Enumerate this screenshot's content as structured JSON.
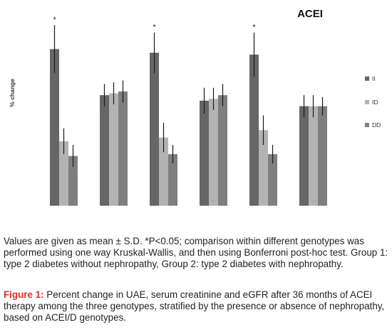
{
  "chart_data": {
    "type": "bar",
    "title": "ACEI",
    "ylabel": "% change",
    "xlabel": "",
    "categories": [
      "",
      "",
      "",
      "",
      "",
      ""
    ],
    "ylim": [
      0,
      100
    ],
    "legend_position": "right",
    "series": [
      {
        "name": "II",
        "color": "#666666",
        "values": [
          85,
          60,
          83,
          57,
          82,
          54
        ],
        "errors": [
          13,
          6,
          11,
          7,
          12,
          6
        ]
      },
      {
        "name": "ID",
        "color": "#b3b3b3",
        "values": [
          35,
          61,
          37,
          58,
          41,
          54
        ],
        "errors": [
          7,
          6,
          8,
          6,
          8,
          6
        ]
      },
      {
        "name": "DD",
        "color": "#7f7f7f",
        "values": [
          27,
          62,
          28,
          60,
          28,
          54
        ],
        "errors": [
          6,
          6,
          5,
          6,
          5,
          5
        ]
      }
    ],
    "annotations": [
      {
        "text": "*",
        "category_index": 0
      },
      {
        "text": "*",
        "category_index": 2
      },
      {
        "text": "*",
        "category_index": 4
      }
    ]
  },
  "caption": {
    "note": "Values are given as mean ± S.D. *P<0.05; comparison within different genotypes was performed using one way Kruskal-Wallis, and then using Bonferroni post-hoc test. Group 1: type 2 diabetes without nephropathy, Group 2: type 2 diabetes with nephropathy.",
    "figure_label": "Figure 1:",
    "figure_text": " Percent change in UAE, serum creatinine and eGFR after 36 months of ACEI therapy among the three genotypes, stratified by the presence or absence of nephropathy, based on ACEI/D genotypes."
  }
}
